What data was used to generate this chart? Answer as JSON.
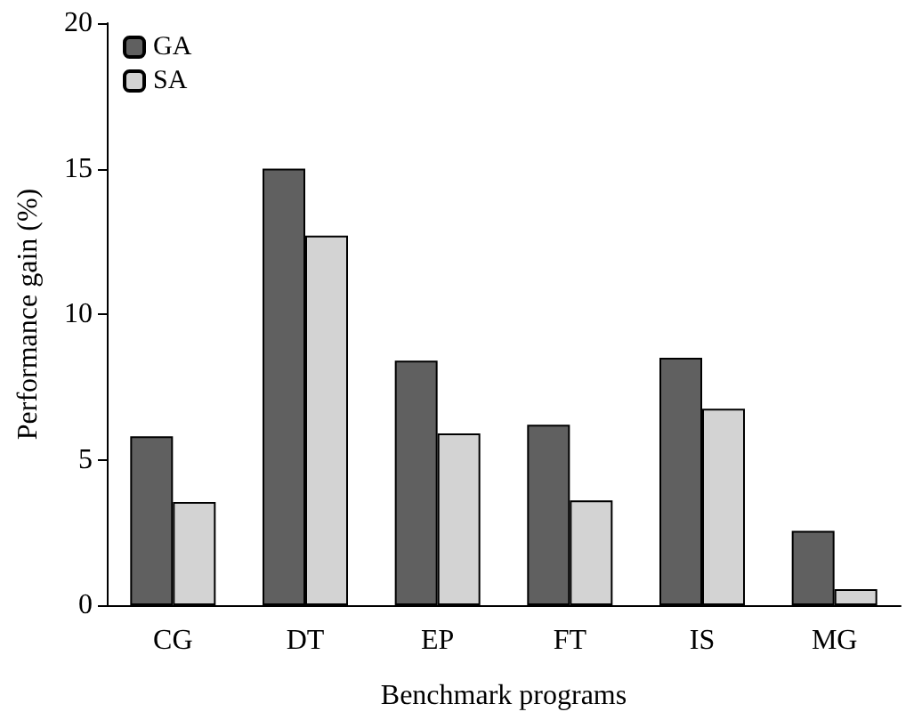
{
  "chart_data": {
    "type": "bar",
    "xlabel": "Benchmark programs",
    "ylabel": "Performance gain (%)",
    "categories": [
      "CG",
      "DT",
      "EP",
      "FT",
      "IS",
      "MG"
    ],
    "series": [
      {
        "name": "GA",
        "color": "#606060",
        "values": [
          5.8,
          15.0,
          8.4,
          6.2,
          8.5,
          2.55
        ]
      },
      {
        "name": "SA",
        "color": "#d3d3d3",
        "values": [
          3.55,
          12.7,
          5.9,
          3.6,
          6.75,
          0.55
        ]
      }
    ],
    "ylim": [
      0,
      20
    ],
    "yticks": [
      0,
      5,
      10,
      15,
      20
    ],
    "grid": false,
    "legend": "top left"
  }
}
